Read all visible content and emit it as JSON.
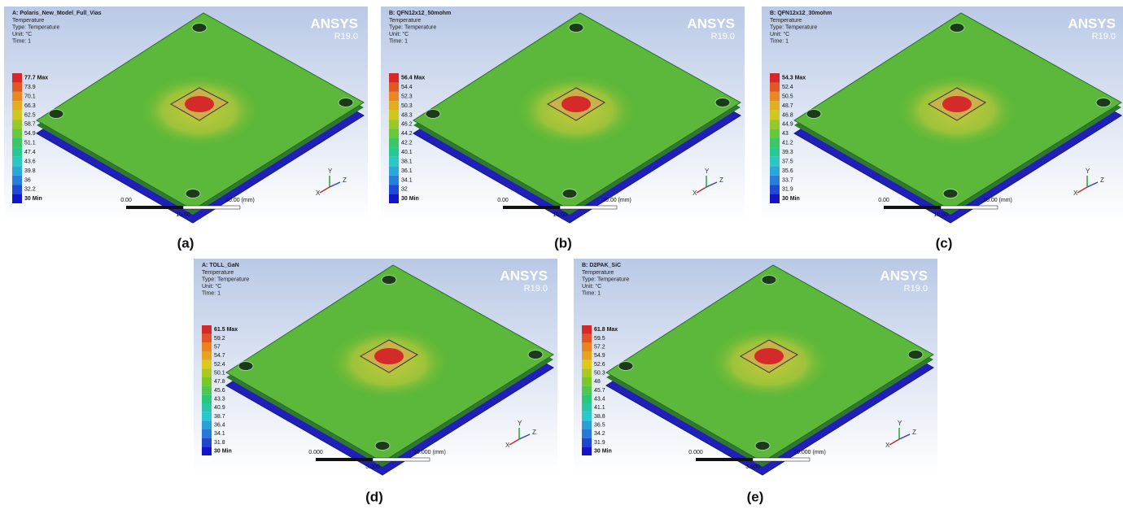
{
  "panels": [
    {
      "name": "A: Polaris_New_Model_Full_Vias",
      "info": [
        "Temperature",
        "Type: Temperature",
        "Unit: °C",
        "Time: 1"
      ],
      "legend": [
        "77.7 Max",
        "73.9",
        "70.1",
        "66.3",
        "62.5",
        "58.7",
        "54.9",
        "51.1",
        "47.4",
        "43.6",
        "39.8",
        "36",
        "32.2",
        "30 Min"
      ],
      "brand": "ANSYS",
      "version": "R19.0",
      "scale": [
        "0.00",
        "20.00 (mm)",
        "10.00"
      ],
      "triad": [
        "X",
        "Y",
        "Z"
      ],
      "caption": "(a)"
    },
    {
      "name": "B: QFN12x12_50mohm",
      "info": [
        "Temperature",
        "Type: Temperature",
        "Unit: °C",
        "Time: 1"
      ],
      "legend": [
        "56.4 Max",
        "54.4",
        "52.3",
        "50.3",
        "48.3",
        "46.2",
        "44.2",
        "42.2",
        "40.1",
        "38.1",
        "36.1",
        "34.1",
        "32",
        "30 Min"
      ],
      "brand": "ANSYS",
      "version": "R19.0",
      "scale": [
        "0.00",
        "20.00 (mm)",
        "10.00"
      ],
      "triad": [
        "X",
        "Y",
        "Z"
      ],
      "caption": "(b)"
    },
    {
      "name": "B: QFN12x12_30mohm",
      "info": [
        "Temperature",
        "Type: Temperature",
        "Unit: °C",
        "Time: 1"
      ],
      "legend": [
        "54.3 Max",
        "52.4",
        "50.5",
        "48.7",
        "46.8",
        "44.9",
        "43",
        "41.2",
        "39.3",
        "37.5",
        "35.6",
        "33.7",
        "31.9",
        "30 Min"
      ],
      "brand": "ANSYS",
      "version": "R19.0",
      "scale": [
        "0.00",
        "20.00 (mm)",
        "10.00"
      ],
      "triad": [
        "X",
        "Y",
        "Z"
      ],
      "caption": "(c)"
    },
    {
      "name": "A: TOLL_GaN",
      "info": [
        "Temperature",
        "Type: Temperature",
        "Unit: °C",
        "Time: 1"
      ],
      "legend": [
        "61.5 Max",
        "59.2",
        "57",
        "54.7",
        "52.4",
        "50.1",
        "47.8",
        "45.6",
        "43.3",
        "40.9",
        "38.7",
        "36.4",
        "34.1",
        "31.8",
        "30 Min"
      ],
      "brand": "ANSYS",
      "version": "R19.0",
      "scale": [
        "0.000",
        "10.000 (mm)",
        "5.000"
      ],
      "triad": [
        "X",
        "Y",
        "Z"
      ],
      "caption": "(d)"
    },
    {
      "name": "B: D2PAK_SiC",
      "info": [
        "Temperature",
        "Type: Temperature",
        "Unit: °C",
        "Time: 1"
      ],
      "legend": [
        "61.8 Max",
        "59.5",
        "57.2",
        "54.9",
        "52.6",
        "50.3",
        "48",
        "45.7",
        "43.4",
        "41.1",
        "38.8",
        "36.5",
        "34.2",
        "31.9",
        "30 Min"
      ],
      "brand": "ANSYS",
      "version": "R19.0",
      "scale": [
        "0.000",
        "10.000 (mm)",
        "5.000"
      ],
      "triad": [
        "X",
        "Y",
        "Z"
      ],
      "caption": "(e)"
    }
  ]
}
